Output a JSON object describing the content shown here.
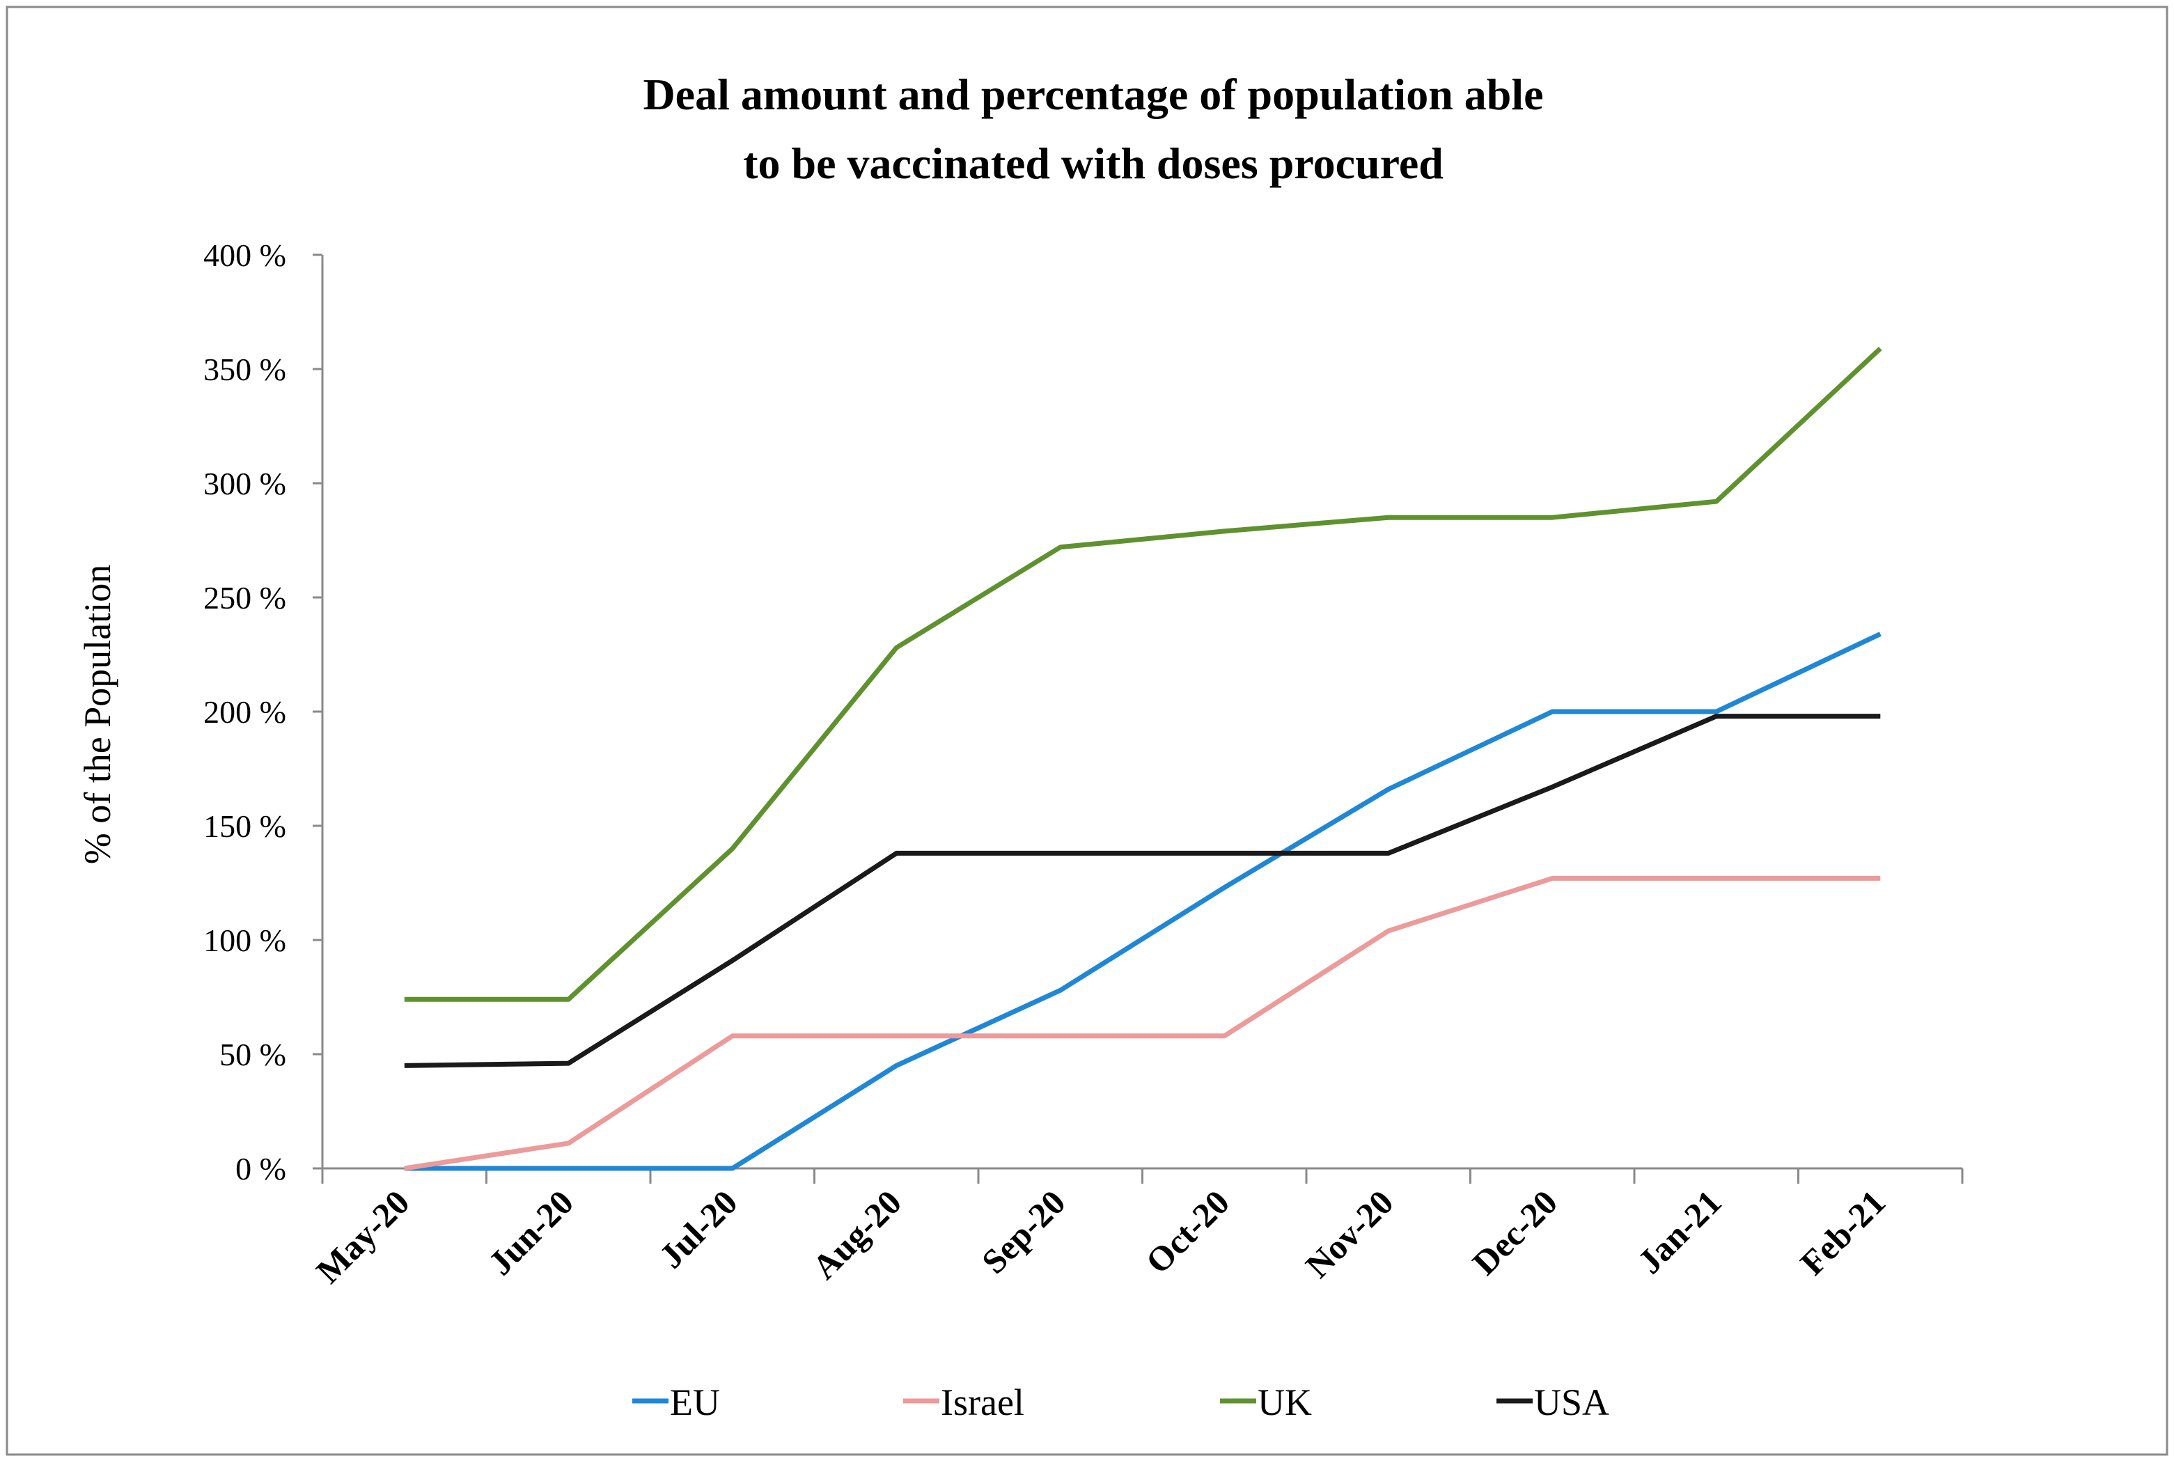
{
  "chart_data": {
    "type": "line",
    "title_lines": [
      "Deal amount and percentage of population able",
      "to be vaccinated with doses procured"
    ],
    "xlabel": "",
    "ylabel": "% of the Population",
    "categories": [
      "May-20",
      "Jun-20",
      "Jul-20",
      "Aug-20",
      "Sep-20",
      "Oct-20",
      "Nov-20",
      "Dec-20",
      "Jan-21",
      "Feb-21"
    ],
    "ylim": [
      0,
      400
    ],
    "yticks": [
      {
        "value": 0,
        "label": "0 %"
      },
      {
        "value": 50,
        "label": "50 %"
      },
      {
        "value": 100,
        "label": "100 %"
      },
      {
        "value": 150,
        "label": "150 %"
      },
      {
        "value": 200,
        "label": "200 %"
      },
      {
        "value": 250,
        "label": "250 %"
      },
      {
        "value": 300,
        "label": "300 %"
      },
      {
        "value": 350,
        "label": "350 %"
      },
      {
        "value": 400,
        "label": "400 %"
      }
    ],
    "grid": false,
    "legend_position": "bottom",
    "series": [
      {
        "name": "EU",
        "color": "#1f87d6",
        "values": [
          0,
          0,
          0,
          45,
          78,
          123,
          166,
          200,
          200,
          234
        ]
      },
      {
        "name": "Israel",
        "color": "#ec9a9a",
        "values": [
          0,
          11,
          58,
          58,
          58,
          58,
          104,
          127,
          127,
          127
        ]
      },
      {
        "name": "UK",
        "color": "#5f922f",
        "values": [
          74,
          74,
          140,
          228,
          272,
          279,
          285,
          285,
          292,
          359
        ]
      },
      {
        "name": "USA",
        "color": "#1a1a1a",
        "values": [
          45,
          46,
          91,
          138,
          138,
          138,
          138,
          167,
          198,
          198
        ]
      }
    ]
  }
}
